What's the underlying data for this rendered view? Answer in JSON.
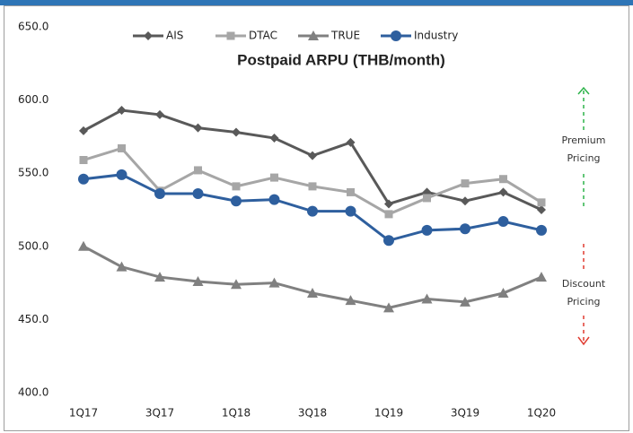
{
  "chart_data": {
    "type": "line",
    "title": "Postpaid ARPU (THB/month)",
    "categories": [
      "1Q17",
      null,
      "3Q17",
      null,
      "1Q18",
      null,
      "3Q18",
      null,
      "1Q19",
      null,
      "3Q19",
      null,
      "1Q20"
    ],
    "series": [
      {
        "name": "AIS",
        "color": "#595959",
        "marker": "diamond",
        "values": [
          579,
          593,
          590,
          581,
          578,
          574,
          562,
          571,
          529,
          537,
          531,
          537,
          525
        ]
      },
      {
        "name": "DTAC",
        "color": "#a6a6a6",
        "marker": "square",
        "values": [
          559,
          567,
          538,
          552,
          541,
          547,
          541,
          537,
          522,
          533,
          543,
          546,
          530
        ]
      },
      {
        "name": "TRUE",
        "color": "#808080",
        "marker": "triangle",
        "values": [
          500,
          486,
          479,
          476,
          474,
          475,
          468,
          463,
          458,
          464,
          462,
          468,
          479
        ]
      },
      {
        "name": "Industry",
        "color": "#2e5f9e",
        "marker": "circle",
        "values": [
          546,
          549,
          536,
          536,
          531,
          532,
          524,
          524,
          504,
          511,
          512,
          517,
          511
        ]
      }
    ],
    "ylim": [
      400,
      650
    ],
    "yticks": [
      {
        "value": 400,
        "label": "400.0"
      },
      {
        "value": 450,
        "label": "450.0"
      },
      {
        "value": 500,
        "label": "500.0"
      },
      {
        "value": 550,
        "label": "550.0"
      },
      {
        "value": 600,
        "label": "600.0"
      },
      {
        "value": 650,
        "label": "650.0"
      }
    ],
    "grid": false,
    "legend": "top",
    "annotations": [
      {
        "text": "Premium Pricing",
        "color": "#2db34a",
        "direction": "up"
      },
      {
        "text": "Discount Pricing",
        "color": "#e03c31",
        "direction": "down"
      }
    ]
  }
}
